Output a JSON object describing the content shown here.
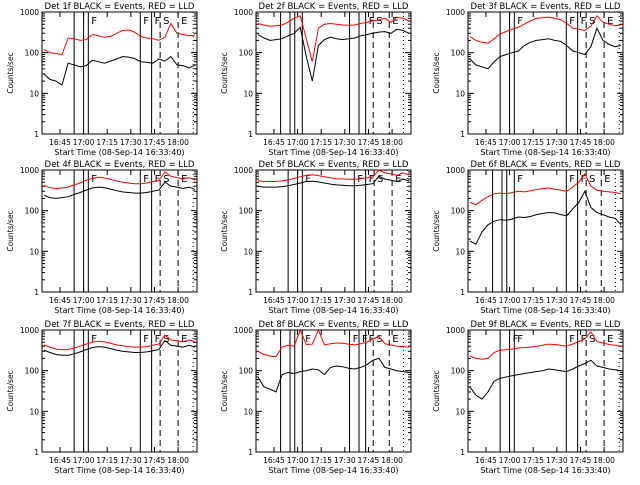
{
  "colors": {
    "events": "#000000",
    "lld": "#ff0000",
    "axes": "#000000"
  },
  "chart_data": [
    {
      "type": "line",
      "title": "Det 1f BLACK = Events, RED = LLD",
      "xlabel": "Start Time (08-Sep-14 16:33:40)",
      "ylabel": "Counts/sec",
      "x_ticks": [
        "16:45",
        "17:00",
        "17:15",
        "17:30",
        "17:45",
        "18:00"
      ],
      "y_ticks": [
        "1",
        "10",
        "100",
        "1000"
      ],
      "scale": "log",
      "ylim": [
        1,
        1000
      ],
      "series": [
        {
          "name": "Events",
          "values": [
            30,
            22,
            20,
            16,
            55,
            50,
            45,
            48,
            65,
            60,
            55,
            62,
            70,
            80,
            78,
            72,
            60,
            58,
            55,
            70,
            62,
            80,
            50,
            48,
            42,
            50
          ]
        },
        {
          "name": "LLD",
          "values": [
            120,
            100,
            95,
            90,
            230,
            220,
            200,
            210,
            280,
            260,
            240,
            250,
            300,
            350,
            360,
            320,
            250,
            230,
            220,
            200,
            240,
            520,
            300,
            280,
            260,
            270
          ]
        }
      ],
      "markers": {
        "solid": [
          16.9,
          17.0,
          17.05,
          17.6,
          17.72
        ],
        "dashed": [
          17.81,
          18.0
        ],
        "dotted": [
          18.16
        ],
        "labels": [
          "F",
          "F",
          "F",
          "S",
          "E"
        ]
      }
    },
    {
      "type": "line",
      "title": "Det 2f BLACK = Events, RED = LLD",
      "xlabel": "Start Time (08-Sep-14 16:33:40)",
      "ylabel": "Counts/sec",
      "x_ticks": [
        "16:45",
        "17:00",
        "17:15",
        "17:30",
        "17:45",
        "18:00"
      ],
      "y_ticks": [
        "1",
        "10",
        "100",
        "1000"
      ],
      "scale": "log",
      "ylim": [
        1,
        1000
      ],
      "series": [
        {
          "name": "Events",
          "values": [
            280,
            230,
            200,
            210,
            220,
            260,
            300,
            420,
            80,
            20,
            150,
            210,
            240,
            220,
            210,
            220,
            230,
            260,
            280,
            300,
            320,
            330,
            300,
            380,
            350,
            300
          ]
        },
        {
          "name": "LLD",
          "values": [
            520,
            480,
            450,
            460,
            480,
            560,
            700,
            800,
            220,
            60,
            400,
            500,
            520,
            500,
            480,
            470,
            480,
            520,
            560,
            600,
            640,
            700,
            560,
            750,
            700,
            600
          ]
        }
      ],
      "markers": {
        "solid": [
          16.82,
          16.92,
          16.97,
          17.05,
          17.55,
          17.65,
          17.72
        ],
        "dashed": [
          17.8,
          17.97
        ],
        "dotted": [
          18.12
        ],
        "labels": [
          "F",
          "S",
          "E"
        ]
      }
    },
    {
      "type": "line",
      "title": "Det 3f BLACK = Events, RED = LLD",
      "xlabel": "Start Time (08-Sep-14 16:33:40)",
      "ylabel": "Counts/sec",
      "x_ticks": [
        "16:45",
        "17:00",
        "17:15",
        "17:30",
        "17:45",
        "18:00"
      ],
      "y_ticks": [
        "1",
        "10",
        "100",
        "1000"
      ],
      "scale": "log",
      "ylim": [
        1,
        1000
      ],
      "series": [
        {
          "name": "Events",
          "values": [
            70,
            50,
            45,
            40,
            60,
            80,
            90,
            100,
            110,
            150,
            180,
            200,
            210,
            220,
            200,
            190,
            150,
            110,
            100,
            90,
            140,
            400,
            200,
            160,
            140,
            150
          ]
        },
        {
          "name": "LLD",
          "values": [
            250,
            200,
            180,
            170,
            220,
            290,
            330,
            380,
            420,
            500,
            600,
            700,
            720,
            750,
            700,
            650,
            520,
            400,
            380,
            350,
            450,
            800,
            560,
            500,
            460,
            480
          ]
        }
      ],
      "markers": {
        "solid": [
          16.9,
          17.0,
          17.05,
          17.6,
          17.72
        ],
        "dashed": [
          17.81,
          18.0
        ],
        "dotted": [
          18.16
        ],
        "labels": [
          "F",
          "F",
          "F",
          "S",
          "E"
        ]
      }
    },
    {
      "type": "line",
      "title": "Det 4f BLACK = Events, RED = LLD",
      "xlabel": "Start Time (08-Sep-14 16:33:40)",
      "ylabel": "Counts/sec",
      "x_ticks": [
        "16:45",
        "17:00",
        "17:15",
        "17:30",
        "17:45",
        "18:00"
      ],
      "y_ticks": [
        "1",
        "10",
        "100",
        "1000"
      ],
      "scale": "log",
      "ylim": [
        1,
        1000
      ],
      "series": [
        {
          "name": "Events",
          "values": [
            240,
            210,
            200,
            210,
            220,
            250,
            280,
            320,
            360,
            380,
            370,
            340,
            310,
            290,
            280,
            270,
            270,
            280,
            300,
            320,
            500,
            400,
            380,
            350,
            380,
            330
          ]
        },
        {
          "name": "LLD",
          "values": [
            420,
            370,
            350,
            360,
            380,
            430,
            480,
            560,
            630,
            660,
            640,
            590,
            540,
            500,
            480,
            460,
            460,
            480,
            520,
            550,
            900,
            700,
            650,
            600,
            650,
            560
          ]
        }
      ],
      "markers": {
        "solid": [
          16.9,
          17.0,
          17.05,
          17.6,
          17.72
        ],
        "dashed": [
          17.81,
          18.0
        ],
        "dotted": [
          18.16
        ],
        "labels": [
          "F",
          "F",
          "F",
          "S",
          "E"
        ]
      }
    },
    {
      "type": "line",
      "title": "Det 5f BLACK = Events, RED = LLD",
      "xlabel": "Start Time (08-Sep-14 16:33:40)",
      "ylabel": "Counts/sec",
      "x_ticks": [
        "16:45",
        "17:00",
        "17:15",
        "17:30",
        "17:45",
        "18:00"
      ],
      "y_ticks": [
        "1",
        "10",
        "100",
        "1000"
      ],
      "scale": "log",
      "ylim": [
        1,
        1000
      ],
      "series": [
        {
          "name": "Events",
          "values": [
            400,
            380,
            380,
            380,
            390,
            410,
            440,
            480,
            520,
            530,
            510,
            480,
            450,
            430,
            420,
            410,
            410,
            420,
            440,
            460,
            700,
            600,
            560,
            520,
            600,
            540
          ]
        },
        {
          "name": "LLD",
          "values": [
            550,
            520,
            520,
            520,
            540,
            570,
            620,
            680,
            740,
            760,
            730,
            680,
            640,
            610,
            600,
            590,
            590,
            610,
            640,
            680,
            1000,
            850,
            800,
            740,
            850,
            760
          ]
        }
      ],
      "markers": {
        "solid": [
          16.9,
          17.0,
          17.05,
          17.6,
          17.72
        ],
        "dashed": [
          17.81,
          18.0
        ],
        "dotted": [
          18.16
        ],
        "labels": [
          "F",
          "F",
          "F",
          "S",
          "E"
        ]
      }
    },
    {
      "type": "line",
      "title": "Det 6f BLACK = Events, RED = LLD",
      "xlabel": "Start Time (08-Sep-14 16:33:40)",
      "ylabel": "Counts/sec",
      "x_ticks": [
        "16:45",
        "17:00",
        "17:15",
        "17:30",
        "17:45",
        "18:00"
      ],
      "y_ticks": [
        "1",
        "10",
        "100",
        "1000"
      ],
      "scale": "log",
      "ylim": [
        1,
        1000
      ],
      "series": [
        {
          "name": "Events",
          "values": [
            18,
            15,
            30,
            45,
            55,
            60,
            58,
            62,
            70,
            68,
            72,
            80,
            85,
            90,
            88,
            80,
            75,
            110,
            160,
            300,
            120,
            90,
            80,
            70,
            65,
            45
          ]
        },
        {
          "name": "LLD",
          "values": [
            160,
            140,
            180,
            220,
            260,
            270,
            260,
            280,
            300,
            290,
            310,
            330,
            350,
            360,
            340,
            320,
            300,
            380,
            500,
            800,
            400,
            320,
            300,
            290,
            280,
            260
          ]
        }
      ],
      "markers": {
        "solid": [
          16.82,
          16.92,
          16.97,
          17.05,
          17.6,
          17.72
        ],
        "dashed": [
          17.81,
          17.97
        ],
        "dotted": [
          18.12
        ],
        "labels": [
          "F",
          "F",
          "F",
          "S",
          "E"
        ]
      }
    },
    {
      "type": "line",
      "title": "Det 7f BLACK = Events, RED = LLD",
      "xlabel": "Start Time (08-Sep-14 16:33:40)",
      "ylabel": "Counts/sec",
      "x_ticks": [
        "16:45",
        "17:00",
        "17:15",
        "17:30",
        "17:45",
        "18:00"
      ],
      "y_ticks": [
        "1",
        "10",
        "100",
        "1000"
      ],
      "scale": "log",
      "ylim": [
        1,
        1000
      ],
      "series": [
        {
          "name": "Events",
          "values": [
            320,
            280,
            250,
            240,
            240,
            260,
            290,
            330,
            370,
            390,
            380,
            350,
            320,
            300,
            290,
            280,
            280,
            290,
            310,
            330,
            550,
            420,
            400,
            380,
            420,
            380
          ]
        },
        {
          "name": "LLD",
          "values": [
            430,
            380,
            340,
            330,
            330,
            360,
            400,
            450,
            500,
            530,
            510,
            470,
            430,
            410,
            390,
            380,
            380,
            390,
            420,
            450,
            750,
            570,
            540,
            510,
            570,
            510
          ]
        }
      ],
      "markers": {
        "solid": [
          16.9,
          17.0,
          17.05,
          17.6,
          17.72
        ],
        "dashed": [
          17.81,
          18.0
        ],
        "dotted": [
          18.16
        ],
        "labels": [
          "F",
          "F",
          "F",
          "S",
          "E"
        ]
      }
    },
    {
      "type": "line",
      "title": "Det 8f BLACK = Events, RED = LLD",
      "xlabel": "Start Time (08-Sep-14 16:33:40)",
      "ylabel": "Counts/sec",
      "x_ticks": [
        "16:45",
        "17:00",
        "17:15",
        "17:30",
        "17:45",
        "18:00"
      ],
      "y_ticks": [
        "1",
        "10",
        "100",
        "1000"
      ],
      "scale": "log",
      "ylim": [
        1,
        1000
      ],
      "series": [
        {
          "name": "Events",
          "values": [
            70,
            40,
            35,
            30,
            80,
            90,
            85,
            95,
            100,
            110,
            105,
            80,
            120,
            130,
            125,
            115,
            110,
            120,
            140,
            180,
            200,
            120,
            110,
            100,
            95,
            90
          ]
        },
        {
          "name": "LLD",
          "values": [
            300,
            250,
            230,
            220,
            380,
            420,
            400,
            1000,
            440,
            450,
            1000,
            430,
            460,
            480,
            470,
            450,
            430,
            460,
            500,
            600,
            700,
            460,
            430,
            400,
            390,
            380
          ]
        }
      ],
      "markers": {
        "solid": [
          16.82,
          16.92,
          16.97,
          17.05,
          17.55,
          17.65,
          17.72
        ],
        "dashed": [
          17.8,
          17.97
        ],
        "dotted": [
          18.12
        ],
        "labels": [
          "F",
          "F",
          "F",
          "F",
          "S",
          "E"
        ]
      }
    },
    {
      "type": "line",
      "title": "Det 9f BLACK = Events, RED = LLD",
      "xlabel": "Start Time (08-Sep-14 16:33:40)",
      "ylabel": "Counts/sec",
      "x_ticks": [
        "16:45",
        "17:00",
        "17:15",
        "17:30",
        "17:45",
        "18:00"
      ],
      "y_ticks": [
        "1",
        "10",
        "100",
        "1000"
      ],
      "scale": "log",
      "ylim": [
        1,
        1000
      ],
      "series": [
        {
          "name": "Events",
          "values": [
            40,
            25,
            20,
            30,
            55,
            65,
            70,
            75,
            80,
            85,
            90,
            95,
            100,
            110,
            105,
            100,
            95,
            110,
            130,
            150,
            180,
            130,
            120,
            110,
            105,
            100
          ]
        },
        {
          "name": "LLD",
          "values": [
            230,
            200,
            190,
            200,
            280,
            320,
            330,
            340,
            360,
            370,
            380,
            400,
            420,
            450,
            440,
            420,
            400,
            450,
            520,
            600,
            900,
            520,
            480,
            440,
            420,
            400
          ]
        }
      ],
      "markers": {
        "solid": [
          16.9,
          17.0,
          17.05,
          17.6,
          17.72
        ],
        "dashed": [
          17.81,
          18.0
        ],
        "dotted": [
          18.16
        ],
        "labels": [
          "F",
          "F",
          "F",
          "F",
          "S",
          "E"
        ]
      }
    }
  ]
}
